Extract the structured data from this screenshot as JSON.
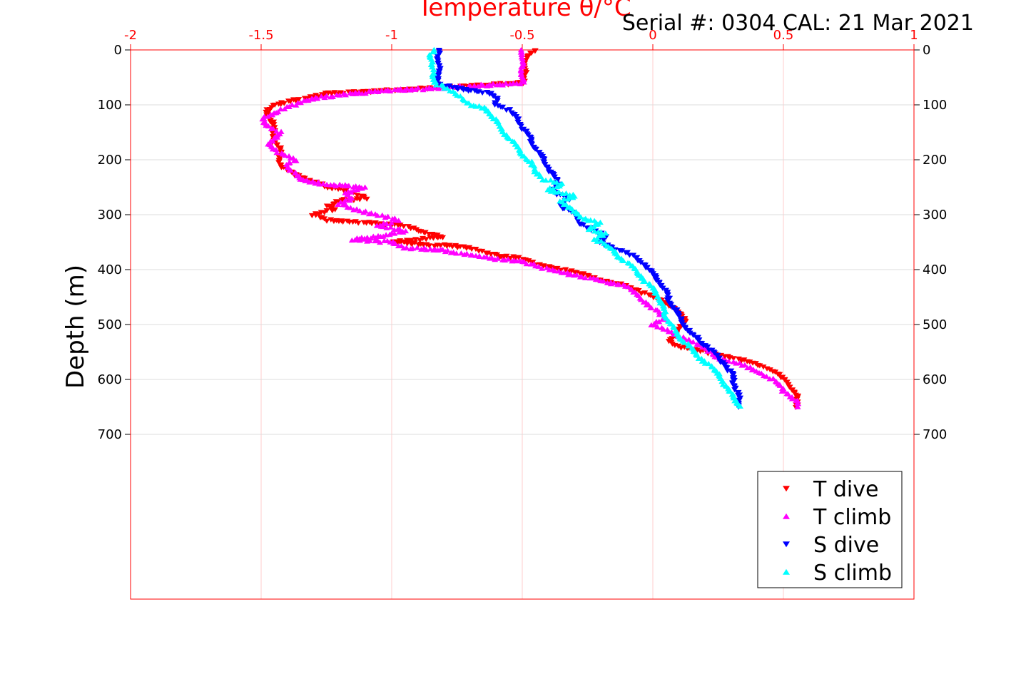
{
  "chart_data": {
    "type": "scatter",
    "title": "Serial #: 0304  CAL: 21 Mar 2021",
    "xlabel": "Temperature θ/°C",
    "ylabel": "Depth (m)",
    "xlim": [
      -2,
      1
    ],
    "ylim": [
      0,
      1000
    ],
    "y_reversed": true,
    "x_axis_position": "top",
    "grid": true,
    "legend_position": "bottom-right",
    "x_ticks": [
      "-2",
      "-1.5",
      "-1",
      "-0.5",
      "0",
      "0.5",
      "1"
    ],
    "y_ticks": [
      "0",
      "100",
      "200",
      "300",
      "400",
      "500",
      "600",
      "700"
    ],
    "colors": {
      "axis": "#ff0000",
      "grid": "#ffcccc",
      "ygrid": "#dcdcdc"
    },
    "series": [
      {
        "name": "T dive",
        "marker": "triangle-down",
        "color": "#ff0000",
        "points": [
          [
            -0.45,
            0
          ],
          [
            -0.48,
            10
          ],
          [
            -0.49,
            20
          ],
          [
            -0.49,
            30
          ],
          [
            -0.49,
            40
          ],
          [
            -0.5,
            50
          ],
          [
            -0.49,
            60
          ],
          [
            -0.85,
            70
          ],
          [
            -1.05,
            75
          ],
          [
            -1.25,
            80
          ],
          [
            -1.35,
            90
          ],
          [
            -1.45,
            100
          ],
          [
            -1.48,
            110
          ],
          [
            -1.47,
            120
          ],
          [
            -1.46,
            130
          ],
          [
            -1.45,
            150
          ],
          [
            -1.45,
            170
          ],
          [
            -1.43,
            180
          ],
          [
            -1.42,
            190
          ],
          [
            -1.43,
            200
          ],
          [
            -1.43,
            210
          ],
          [
            -1.4,
            220
          ],
          [
            -1.35,
            230
          ],
          [
            -1.3,
            240
          ],
          [
            -1.25,
            250
          ],
          [
            -1.18,
            255
          ],
          [
            -1.1,
            270
          ],
          [
            -1.2,
            275
          ],
          [
            -1.25,
            285
          ],
          [
            -1.22,
            290
          ],
          [
            -1.3,
            300
          ],
          [
            -1.25,
            310
          ],
          [
            -1.1,
            315
          ],
          [
            -0.95,
            320
          ],
          [
            -0.9,
            330
          ],
          [
            -0.8,
            340
          ],
          [
            -1.0,
            350
          ],
          [
            -0.7,
            360
          ],
          [
            -0.6,
            375
          ],
          [
            -0.5,
            380
          ],
          [
            -0.45,
            390
          ],
          [
            -0.35,
            400
          ],
          [
            -0.25,
            410
          ],
          [
            -0.2,
            420
          ],
          [
            -0.1,
            430
          ],
          [
            -0.05,
            440
          ],
          [
            0.0,
            450
          ],
          [
            0.05,
            460
          ],
          [
            0.08,
            470
          ],
          [
            0.1,
            480
          ],
          [
            0.12,
            490
          ],
          [
            0.12,
            500
          ],
          [
            0.1,
            510
          ],
          [
            0.08,
            520
          ],
          [
            0.06,
            530
          ],
          [
            0.1,
            540
          ],
          [
            0.2,
            550
          ],
          [
            0.3,
            560
          ],
          [
            0.38,
            570
          ],
          [
            0.44,
            580
          ],
          [
            0.48,
            590
          ],
          [
            0.5,
            600
          ],
          [
            0.52,
            610
          ],
          [
            0.54,
            620
          ],
          [
            0.55,
            630
          ],
          [
            0.55,
            640
          ],
          [
            0.55,
            650
          ]
        ]
      },
      {
        "name": "T climb",
        "marker": "triangle-up",
        "color": "#ff00ff",
        "points": [
          [
            0.55,
            650
          ],
          [
            0.55,
            640
          ],
          [
            0.53,
            630
          ],
          [
            0.5,
            620
          ],
          [
            0.46,
            600
          ],
          [
            0.4,
            585
          ],
          [
            0.35,
            575
          ],
          [
            0.25,
            560
          ],
          [
            0.2,
            545
          ],
          [
            0.15,
            530
          ],
          [
            0.1,
            520
          ],
          [
            0.05,
            510
          ],
          [
            0.0,
            500
          ],
          [
            0.05,
            490
          ],
          [
            0.0,
            470
          ],
          [
            -0.05,
            450
          ],
          [
            -0.1,
            430
          ],
          [
            -0.2,
            420
          ],
          [
            -0.3,
            410
          ],
          [
            -0.4,
            400
          ],
          [
            -0.5,
            385
          ],
          [
            -0.6,
            380
          ],
          [
            -0.75,
            370
          ],
          [
            -0.8,
            365
          ],
          [
            -0.95,
            360
          ],
          [
            -1.0,
            350
          ],
          [
            -1.15,
            345
          ],
          [
            -1.05,
            340
          ],
          [
            -0.95,
            330
          ],
          [
            -1.05,
            320
          ],
          [
            -0.98,
            310
          ],
          [
            -1.05,
            300
          ],
          [
            -1.15,
            290
          ],
          [
            -1.2,
            280
          ],
          [
            -1.15,
            270
          ],
          [
            -1.18,
            260
          ],
          [
            -1.1,
            250
          ],
          [
            -1.25,
            245
          ],
          [
            -1.3,
            240
          ],
          [
            -1.35,
            235
          ],
          [
            -1.38,
            220
          ],
          [
            -1.4,
            210
          ],
          [
            -1.37,
            200
          ],
          [
            -1.42,
            190
          ],
          [
            -1.45,
            180
          ],
          [
            -1.47,
            170
          ],
          [
            -1.45,
            160
          ],
          [
            -1.43,
            150
          ],
          [
            -1.47,
            140
          ],
          [
            -1.5,
            125
          ],
          [
            -1.45,
            115
          ],
          [
            -1.4,
            105
          ],
          [
            -1.35,
            95
          ],
          [
            -1.3,
            88
          ],
          [
            -1.2,
            82
          ],
          [
            -1.05,
            75
          ],
          [
            -0.95,
            72
          ],
          [
            -0.85,
            70
          ],
          [
            -0.5,
            60
          ],
          [
            -0.5,
            40
          ],
          [
            -0.5,
            20
          ],
          [
            -0.5,
            0
          ]
        ]
      },
      {
        "name": "S dive",
        "marker": "triangle-down",
        "color": "#0000ff",
        "points": [
          [
            -0.82,
            0
          ],
          [
            -0.82,
            10
          ],
          [
            -0.82,
            20
          ],
          [
            -0.82,
            30
          ],
          [
            -0.82,
            40
          ],
          [
            -0.82,
            50
          ],
          [
            -0.82,
            60
          ],
          [
            -0.8,
            65
          ],
          [
            -0.75,
            70
          ],
          [
            -0.68,
            75
          ],
          [
            -0.62,
            80
          ],
          [
            -0.6,
            90
          ],
          [
            -0.6,
            100
          ],
          [
            -0.55,
            110
          ],
          [
            -0.52,
            125
          ],
          [
            -0.5,
            140
          ],
          [
            -0.48,
            155
          ],
          [
            -0.46,
            170
          ],
          [
            -0.44,
            185
          ],
          [
            -0.42,
            200
          ],
          [
            -0.4,
            215
          ],
          [
            -0.38,
            230
          ],
          [
            -0.36,
            245
          ],
          [
            -0.38,
            260
          ],
          [
            -0.32,
            270
          ],
          [
            -0.35,
            285
          ],
          [
            -0.3,
            300
          ],
          [
            -0.28,
            315
          ],
          [
            -0.22,
            330
          ],
          [
            -0.18,
            340
          ],
          [
            -0.2,
            350
          ],
          [
            -0.15,
            360
          ],
          [
            -0.1,
            370
          ],
          [
            -0.06,
            380
          ],
          [
            -0.02,
            395
          ],
          [
            0.0,
            410
          ],
          [
            0.03,
            425
          ],
          [
            0.05,
            440
          ],
          [
            0.06,
            455
          ],
          [
            0.08,
            470
          ],
          [
            0.1,
            485
          ],
          [
            0.12,
            500
          ],
          [
            0.14,
            515
          ],
          [
            0.18,
            530
          ],
          [
            0.22,
            545
          ],
          [
            0.25,
            560
          ],
          [
            0.28,
            575
          ],
          [
            0.3,
            590
          ],
          [
            0.31,
            605
          ],
          [
            0.32,
            620
          ],
          [
            0.33,
            635
          ],
          [
            0.33,
            650
          ]
        ]
      },
      {
        "name": "S climb",
        "marker": "triangle-up",
        "color": "#00ffff",
        "points": [
          [
            0.33,
            650
          ],
          [
            0.32,
            640
          ],
          [
            0.31,
            630
          ],
          [
            0.29,
            620
          ],
          [
            0.27,
            605
          ],
          [
            0.25,
            590
          ],
          [
            0.22,
            575
          ],
          [
            0.18,
            560
          ],
          [
            0.15,
            545
          ],
          [
            0.12,
            530
          ],
          [
            0.09,
            515
          ],
          [
            0.07,
            500
          ],
          [
            0.05,
            485
          ],
          [
            0.04,
            470
          ],
          [
            0.03,
            455
          ],
          [
            0.01,
            440
          ],
          [
            -0.02,
            425
          ],
          [
            -0.05,
            410
          ],
          [
            -0.08,
            395
          ],
          [
            -0.12,
            380
          ],
          [
            -0.15,
            365
          ],
          [
            -0.18,
            355
          ],
          [
            -0.22,
            345
          ],
          [
            -0.18,
            335
          ],
          [
            -0.25,
            325
          ],
          [
            -0.2,
            315
          ],
          [
            -0.28,
            305
          ],
          [
            -0.3,
            295
          ],
          [
            -0.32,
            285
          ],
          [
            -0.35,
            275
          ],
          [
            -0.3,
            265
          ],
          [
            -0.4,
            255
          ],
          [
            -0.35,
            245
          ],
          [
            -0.42,
            235
          ],
          [
            -0.45,
            220
          ],
          [
            -0.47,
            205
          ],
          [
            -0.5,
            190
          ],
          [
            -0.52,
            175
          ],
          [
            -0.55,
            160
          ],
          [
            -0.58,
            145
          ],
          [
            -0.6,
            130
          ],
          [
            -0.62,
            115
          ],
          [
            -0.65,
            105
          ],
          [
            -0.7,
            100
          ],
          [
            -0.72,
            90
          ],
          [
            -0.75,
            80
          ],
          [
            -0.8,
            70
          ],
          [
            -0.83,
            60
          ],
          [
            -0.84,
            50
          ],
          [
            -0.84,
            40
          ],
          [
            -0.85,
            30
          ],
          [
            -0.84,
            20
          ],
          [
            -0.85,
            10
          ],
          [
            -0.84,
            0
          ]
        ]
      }
    ]
  }
}
